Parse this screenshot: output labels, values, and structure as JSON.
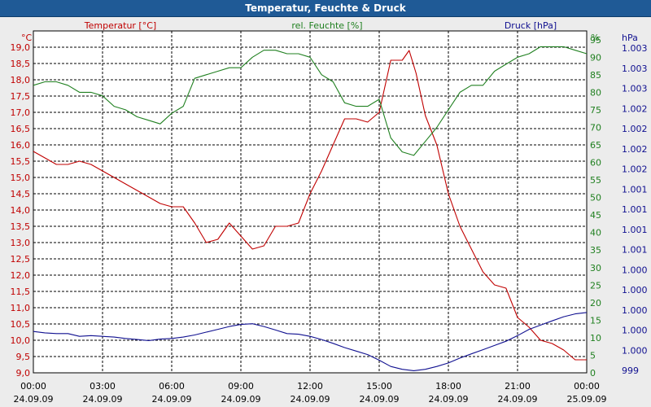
{
  "window_title": "Temperatur, Feuchte & Druck",
  "colors": {
    "temp": "#c00000",
    "hum": "#208020",
    "press": "#101090",
    "titlebar": "#1f5a96"
  },
  "chart_data": {
    "type": "line",
    "title": "Temperatur, Feuchte & Druck",
    "x_ticks": [
      {
        "h": 0,
        "time": "00:00",
        "date": "24.09.09"
      },
      {
        "h": 3,
        "time": "03:00",
        "date": "24.09.09"
      },
      {
        "h": 6,
        "time": "06:00",
        "date": "24.09.09"
      },
      {
        "h": 9,
        "time": "09:00",
        "date": "24.09.09"
      },
      {
        "h": 12,
        "time": "12:00",
        "date": "24.09.09"
      },
      {
        "h": 15,
        "time": "15:00",
        "date": "24.09.09"
      },
      {
        "h": 18,
        "time": "18:00",
        "date": "24.09.09"
      },
      {
        "h": 21,
        "time": "21:00",
        "date": "24.09.09"
      },
      {
        "h": 24,
        "time": "00:00",
        "date": "25.09.09"
      }
    ],
    "xlim": [
      0,
      24
    ],
    "axes": {
      "temp": {
        "unit": "°C",
        "label": "Temperatur [°C]",
        "ylim": [
          9.0,
          19.5
        ],
        "ticks": [
          "9,0",
          "9,5",
          "10,0",
          "10,5",
          "11,0",
          "11,5",
          "12,0",
          "12,5",
          "13,0",
          "13,5",
          "14,0",
          "14,5",
          "15,0",
          "15,5",
          "16,0",
          "16,5",
          "17,0",
          "17,5",
          "18,0",
          "18,5",
          "19,0"
        ]
      },
      "hum": {
        "unit": "%",
        "label": "rel. Feuchte [%]",
        "ylim": [
          0,
          97.5
        ],
        "ticks": [
          "0",
          "5",
          "10",
          "15",
          "20",
          "25",
          "30",
          "35",
          "40",
          "45",
          "50",
          "55",
          "60",
          "65",
          "70",
          "75",
          "80",
          "85",
          "90",
          "95"
        ]
      },
      "press": {
        "unit": "hPa",
        "label": "Druck [hPa]",
        "ticks": [
          "999",
          "1.000",
          "1.000",
          "1.000",
          "1.000",
          "1.000",
          "1.001",
          "1.001",
          "1.001",
          "1.001",
          "1.002",
          "1.002",
          "1.002",
          "1.002",
          "1.003",
          "1.003",
          "1.003"
        ]
      }
    },
    "series": [
      {
        "name": "Temperatur [°C]",
        "axis": "temp",
        "x": [
          0,
          0.5,
          1,
          1.5,
          2,
          2.5,
          3,
          3.5,
          4,
          4.5,
          5,
          5.5,
          6,
          6.5,
          7,
          7.5,
          8,
          8.5,
          9,
          9.5,
          10,
          10.5,
          11,
          11.5,
          12,
          12.5,
          13,
          13.5,
          14,
          14.5,
          15,
          15.5,
          16,
          16.3,
          16.6,
          17,
          17.5,
          18,
          18.5,
          19,
          19.5,
          20,
          20.5,
          21,
          21.5,
          22,
          22.5,
          23,
          23.5,
          24
        ],
        "values": [
          15.8,
          15.6,
          15.4,
          15.4,
          15.5,
          15.4,
          15.2,
          15.0,
          14.8,
          14.6,
          14.4,
          14.2,
          14.1,
          14.1,
          13.6,
          13.0,
          13.1,
          13.6,
          13.2,
          12.8,
          12.9,
          13.5,
          13.5,
          13.6,
          14.5,
          15.2,
          16.0,
          16.8,
          16.8,
          16.7,
          17.0,
          18.6,
          18.6,
          18.9,
          18.2,
          16.9,
          16.0,
          14.5,
          13.5,
          12.8,
          12.1,
          11.7,
          11.6,
          10.7,
          10.4,
          10.0,
          9.9,
          9.7,
          9.4,
          9.4
        ]
      },
      {
        "name": "rel. Feuchte [%]",
        "axis": "hum",
        "x": [
          0,
          0.5,
          1,
          1.5,
          2,
          2.5,
          3,
          3.5,
          4,
          4.5,
          5,
          5.5,
          6,
          6.5,
          7,
          7.5,
          8,
          8.5,
          9,
          9.5,
          10,
          10.5,
          11,
          11.5,
          12,
          12.5,
          13,
          13.5,
          14,
          14.5,
          15,
          15.5,
          16,
          16.5,
          17,
          17.5,
          18,
          18.5,
          19,
          19.5,
          20,
          20.5,
          21,
          21.5,
          22,
          22.5,
          23,
          23.5,
          24
        ],
        "values": [
          82,
          83,
          83,
          82,
          80,
          80,
          79,
          76,
          75,
          73,
          72,
          71,
          74,
          76,
          84,
          85,
          86,
          87,
          87,
          90,
          92,
          92,
          91,
          91,
          90,
          85,
          83,
          77,
          76,
          76,
          78,
          67,
          63,
          62,
          66,
          70,
          75,
          80,
          82,
          82,
          86,
          88,
          90,
          91,
          93,
          93,
          93,
          92,
          91
        ]
      },
      {
        "name": "Druck [hPa]",
        "axis": "press",
        "x": [
          0,
          0.5,
          1,
          1.5,
          2,
          2.5,
          3,
          3.5,
          4,
          4.5,
          5,
          5.5,
          6,
          6.5,
          7,
          7.5,
          8,
          8.5,
          9,
          9.5,
          10,
          10.5,
          11,
          11.5,
          12,
          12.5,
          13,
          13.5,
          14,
          14.5,
          15,
          15.5,
          16,
          16.5,
          17,
          17.5,
          18,
          18.5,
          19,
          19.5,
          20,
          20.5,
          21,
          21.5,
          22,
          22.5,
          23,
          23.5,
          24
        ],
        "values": [
          11.8,
          11.4,
          11.2,
          11.2,
          10.4,
          10.6,
          10.4,
          10.2,
          9.8,
          9.5,
          9.2,
          9.6,
          9.8,
          10.2,
          10.8,
          11.6,
          12.4,
          13.2,
          13.8,
          14.0,
          13.2,
          12.2,
          11.2,
          11.0,
          10.4,
          9.5,
          8.4,
          7.2,
          6.2,
          5.2,
          3.6,
          1.8,
          1.0,
          0.6,
          1.0,
          1.8,
          2.8,
          4.2,
          5.4,
          6.6,
          7.8,
          9.0,
          10.6,
          12.4,
          13.6,
          14.8,
          16.0,
          16.8,
          17.2
        ]
      }
    ]
  }
}
